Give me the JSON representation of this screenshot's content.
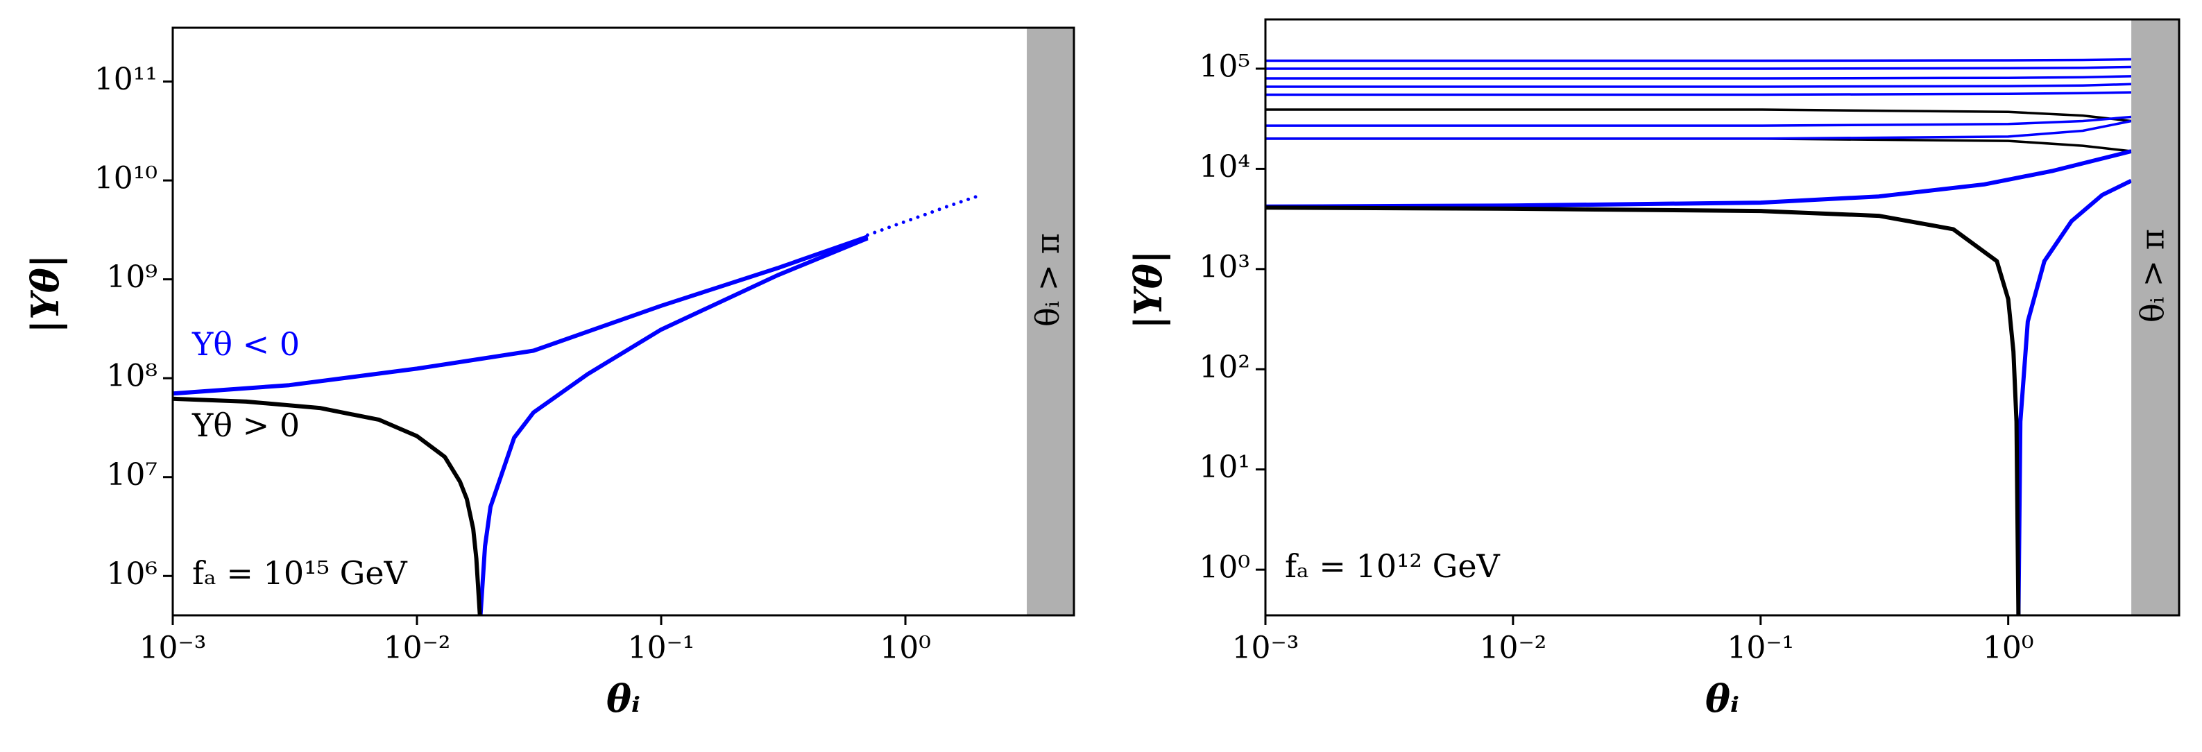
{
  "chart_data": [
    {
      "type": "line",
      "xlabel": "θᵢ",
      "ylabel": "|Yθ|",
      "xscale": "log",
      "yscale": "log",
      "xlim": [
        0.001,
        4.9
      ],
      "ylim": [
        400000,
        350000000000
      ],
      "xticks": [
        {
          "value": 0.001,
          "label": "10⁻³"
        },
        {
          "value": 0.01,
          "label": "10⁻²"
        },
        {
          "value": 0.1,
          "label": "10⁻¹"
        },
        {
          "value": 1,
          "label": "10⁰"
        }
      ],
      "yticks": [
        {
          "value": 1000000,
          "label": "10⁶"
        },
        {
          "value": 10000000,
          "label": "10⁷"
        },
        {
          "value": 100000000,
          "label": "10⁸"
        },
        {
          "value": 1000000000,
          "label": "10⁹"
        },
        {
          "value": 10000000000,
          "label": "10¹⁰"
        },
        {
          "value": 100000000000,
          "label": "10¹¹"
        }
      ],
      "shaded_region": {
        "xlim": [
          3.14159,
          4.9
        ],
        "label": "θᵢ > π",
        "color": "#b0b0b0"
      },
      "annotations": [
        "fₐ = 10¹⁵ GeV"
      ],
      "series": [
        {
          "name": "Yθ < 0",
          "color": "#0000ff",
          "linestyle": "thick",
          "x": [
            0.001,
            0.003,
            0.01,
            0.03,
            0.1,
            0.3,
            0.7
          ],
          "values": [
            70000000,
            85000000,
            125000000,
            190000000,
            540000000,
            1300000000,
            2700000000
          ]
        },
        {
          "color": "#0000ff",
          "linestyle": "thick",
          "x": [
            0.0182,
            0.019,
            0.02,
            0.025,
            0.03,
            0.05,
            0.1,
            0.3,
            0.7
          ],
          "values": [
            400000,
            2000000,
            5000000,
            25000000,
            45000000,
            110000000,
            310000000,
            1100000000,
            2600000000
          ]
        },
        {
          "color": "#0000ff",
          "linestyle": "dotted",
          "x": [
            0.7,
            0.9,
            1.2,
            1.5,
            2.0
          ],
          "values": [
            2800000000,
            3500000000,
            4500000000,
            5500000000,
            7000000000
          ]
        },
        {
          "name": "Yθ > 0",
          "color": "#000000",
          "linestyle": "thick",
          "x": [
            0.001,
            0.002,
            0.004,
            0.007,
            0.01,
            0.013,
            0.015,
            0.016,
            0.017,
            0.0175,
            0.0181
          ],
          "values": [
            62000000,
            58000000,
            50000000,
            38000000,
            26000000,
            16000000,
            9000000,
            6000000,
            3000000,
            1500000,
            400000
          ]
        }
      ]
    },
    {
      "type": "line",
      "xlabel": "θᵢ",
      "ylabel": "|Yθ|",
      "xscale": "log",
      "yscale": "log",
      "xlim": [
        0.001,
        4.9
      ],
      "ylim": [
        0.35,
        310000
      ],
      "xticks": [
        {
          "value": 0.001,
          "label": "10⁻³"
        },
        {
          "value": 0.01,
          "label": "10⁻²"
        },
        {
          "value": 0.1,
          "label": "10⁻¹"
        },
        {
          "value": 1,
          "label": "10⁰"
        }
      ],
      "yticks": [
        {
          "value": 1,
          "label": "10⁰"
        },
        {
          "value": 10,
          "label": "10¹"
        },
        {
          "value": 100,
          "label": "10²"
        },
        {
          "value": 1000,
          "label": "10³"
        },
        {
          "value": 10000,
          "label": "10⁴"
        },
        {
          "value": 100000,
          "label": "10⁵"
        }
      ],
      "shaded_region": {
        "xlim": [
          3.14159,
          4.9
        ],
        "label": "θᵢ > π",
        "color": "#b0b0b0"
      },
      "annotations": [
        "fₐ = 10¹² GeV"
      ],
      "series": [
        {
          "color": "#000000",
          "linestyle": "thin",
          "x": [
            0.001,
            0.1,
            1,
            2,
            3.14
          ],
          "values": [
            20000,
            20000,
            19000,
            17000,
            15000
          ]
        },
        {
          "color": "#000000",
          "linestyle": "thin",
          "x": [
            0.001,
            0.1,
            1,
            2,
            3.14
          ],
          "values": [
            39000,
            39000,
            37000,
            34000,
            30000
          ]
        },
        {
          "color": "#0000ff",
          "linestyle": "thin",
          "x": [
            0.001,
            0.1,
            1,
            2,
            3.14
          ],
          "values": [
            20000,
            20000,
            21000,
            24000,
            30000
          ]
        },
        {
          "color": "#0000ff",
          "linestyle": "thin",
          "x": [
            0.001,
            0.1,
            1,
            2,
            3.14
          ],
          "values": [
            27000,
            27000,
            28000,
            30000,
            33000
          ]
        },
        {
          "color": "#0000ff",
          "linestyle": "thin",
          "x": [
            0.001,
            0.1,
            1,
            2,
            3.14
          ],
          "values": [
            55000,
            55000,
            56000,
            57000,
            58000
          ]
        },
        {
          "color": "#0000ff",
          "linestyle": "thin",
          "x": [
            0.001,
            0.1,
            1,
            2,
            3.14
          ],
          "values": [
            66000,
            66000,
            67000,
            68000,
            70000
          ]
        },
        {
          "color": "#0000ff",
          "linestyle": "thin",
          "x": [
            0.001,
            0.1,
            1,
            2,
            3.14
          ],
          "values": [
            80000,
            80000,
            81000,
            82000,
            84000
          ]
        },
        {
          "color": "#0000ff",
          "linestyle": "thin",
          "x": [
            0.001,
            0.1,
            1,
            2,
            3.14
          ],
          "values": [
            100000,
            100000,
            101000,
            102000,
            104000
          ]
        },
        {
          "color": "#0000ff",
          "linestyle": "thin",
          "x": [
            0.001,
            0.1,
            1,
            2,
            3.14
          ],
          "values": [
            120000,
            120000,
            121000,
            122000,
            124000
          ]
        },
        {
          "color": "#0000ff",
          "linestyle": "thick",
          "x": [
            0.001,
            0.01,
            0.1,
            0.3,
            0.8,
            1.5,
            2.5,
            3.14
          ],
          "values": [
            4200,
            4300,
            4600,
            5300,
            7000,
            9500,
            13000,
            15000
          ]
        },
        {
          "color": "#0000ff",
          "linestyle": "thick",
          "x": [
            1.1,
            1.12,
            1.2,
            1.4,
            1.8,
            2.4,
            3.14
          ],
          "values": [
            0.35,
            30,
            300,
            1200,
            3000,
            5500,
            7600
          ]
        },
        {
          "color": "#000000",
          "linestyle": "thick",
          "x": [
            0.001,
            0.01,
            0.1,
            0.3,
            0.6,
            0.9,
            1.0,
            1.05,
            1.08,
            1.1
          ],
          "values": [
            4100,
            4000,
            3800,
            3400,
            2500,
            1200,
            500,
            150,
            30,
            0.35
          ]
        }
      ]
    }
  ]
}
